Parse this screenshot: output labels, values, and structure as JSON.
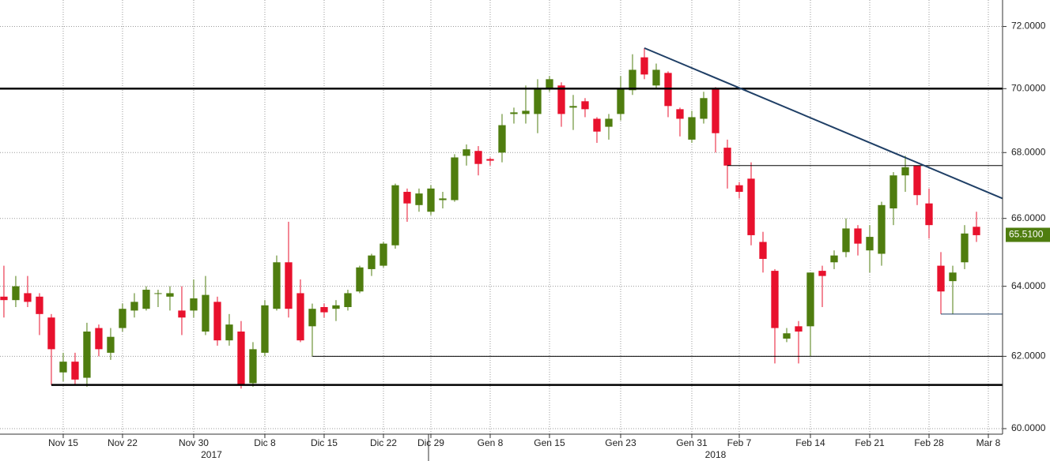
{
  "chart_data": {
    "type": "candlestick",
    "y_log": true,
    "grid": true,
    "up_color": "#4f7d0f",
    "down_color": "#e8112d",
    "xlim": [
      -0.33,
      84.2
    ],
    "ylim": [
      59.85,
      72.87
    ],
    "yticks": [
      {
        "value": 60,
        "label": "60.0000"
      },
      {
        "value": 62,
        "label": "62.0000"
      },
      {
        "value": 64,
        "label": "64.0000"
      },
      {
        "value": 66,
        "label": "66.0000"
      },
      {
        "value": 68,
        "label": "68.0000"
      },
      {
        "value": 70,
        "label": "70.0000"
      },
      {
        "value": 72,
        "label": "72.0000"
      }
    ],
    "xticks": [
      {
        "value": 5,
        "label": "Nov 15"
      },
      {
        "value": 10,
        "label": "Nov 22"
      },
      {
        "value": 16,
        "label": "Nov 30"
      },
      {
        "value": 22,
        "label": "Dic 8"
      },
      {
        "value": 27,
        "label": "Dic 15"
      },
      {
        "value": 32,
        "label": "Dic 22"
      },
      {
        "value": 36,
        "label": "Dic 29"
      },
      {
        "value": 41,
        "label": "Gen 8"
      },
      {
        "value": 46,
        "label": "Gen 15"
      },
      {
        "value": 52,
        "label": "Gen 23"
      },
      {
        "value": 58,
        "label": "Gen 31"
      },
      {
        "value": 62,
        "label": "Feb 7"
      },
      {
        "value": 68,
        "label": "Feb 14"
      },
      {
        "value": 73,
        "label": "Feb 21"
      },
      {
        "value": 78,
        "label": "Feb 28"
      },
      {
        "value": 83,
        "label": "Mar 8"
      }
    ],
    "year_ticks": [
      {
        "value": 17.5,
        "label": "2017"
      },
      {
        "value": 60,
        "label": "2018"
      }
    ],
    "year_separator": 35.8,
    "last_price": {
      "value": 65.51,
      "label": "65.5100"
    },
    "lines": [
      {
        "x0": -0.33,
        "y0": 70,
        "x1": 84.2,
        "y1": 70,
        "style": "thick",
        "color": "#000000"
      },
      {
        "x0": 4,
        "y0": 61.2,
        "x1": 84.2,
        "y1": 61.2,
        "style": "thick",
        "color": "#000000"
      },
      {
        "x0": 26,
        "y0": 62,
        "x1": 84.2,
        "y1": 62,
        "style": "thin",
        "color": "#000000"
      },
      {
        "x0": 61,
        "y0": 67.6,
        "x1": 84.2,
        "y1": 67.6,
        "style": "thin",
        "color": "#000000"
      },
      {
        "x0": 79,
        "y0": 63.2,
        "x1": 84.2,
        "y1": 63.2,
        "style": "thin",
        "color": "#1f3f66"
      },
      {
        "x0": 54,
        "y0": 71.3,
        "x1": 84.2,
        "y1": 66.6,
        "style": "trend",
        "color": "#1f3f66"
      }
    ],
    "x": [
      0,
      1,
      2,
      3,
      4,
      5,
      6,
      7,
      8,
      9,
      10,
      11,
      12,
      13,
      14,
      15,
      16,
      17,
      18,
      19,
      20,
      21,
      22,
      23,
      24,
      25,
      26,
      27,
      28,
      29,
      30,
      31,
      32,
      33,
      34,
      35,
      36,
      37,
      38,
      39,
      40,
      41,
      42,
      43,
      44,
      45,
      46,
      47,
      48,
      49,
      50,
      51,
      52,
      53,
      54,
      55,
      56,
      57,
      58,
      59,
      60,
      61,
      62,
      63,
      64,
      65,
      66,
      67,
      68,
      69,
      70,
      71,
      72,
      73,
      74,
      75,
      76,
      77,
      78,
      79,
      80,
      81,
      82
    ],
    "open": [
      63.7,
      63.6,
      63.8,
      63.7,
      63.1,
      61.55,
      61.85,
      61.4,
      62.8,
      62.1,
      62.8,
      63.3,
      63.35,
      63.78,
      63.7,
      63.3,
      63.3,
      62.7,
      63.55,
      62.45,
      62.7,
      61.25,
      62.1,
      63.35,
      64.7,
      63.8,
      62.85,
      63.4,
      63.35,
      63.4,
      63.85,
      64.5,
      64.6,
      65.2,
      66.8,
      66.4,
      66.2,
      66.55,
      66.55,
      67.9,
      68.05,
      67.8,
      68.0,
      69.2,
      69.2,
      69.2,
      70.0,
      70.1,
      69.4,
      69.6,
      69.05,
      68.8,
      69.2,
      69.95,
      71.0,
      70.1,
      70.5,
      69.35,
      68.4,
      69.05,
      70.0,
      68.15,
      67.0,
      67.2,
      65.3,
      64.45,
      62.5,
      62.85,
      62.85,
      64.45,
      64.7,
      65.0,
      65.7,
      65.05,
      64.95,
      66.3,
      67.3,
      67.6,
      66.45,
      64.6,
      64.15,
      64.7,
      65.75
    ],
    "high": [
      64.6,
      64.3,
      64.3,
      63.8,
      63.2,
      62.1,
      62.1,
      62.95,
      62.9,
      62.8,
      63.5,
      63.8,
      64.0,
      63.9,
      64.0,
      64.0,
      64.2,
      64.3,
      63.7,
      63.2,
      63.0,
      62.4,
      63.6,
      64.9,
      65.9,
      64.2,
      63.5,
      63.5,
      63.6,
      63.9,
      64.6,
      64.95,
      65.3,
      67.05,
      66.9,
      66.9,
      67.0,
      66.8,
      67.95,
      68.25,
      68.2,
      67.85,
      69.2,
      69.4,
      70.1,
      70.3,
      70.4,
      70.2,
      69.8,
      69.7,
      69.1,
      69.2,
      70.4,
      71.1,
      71.3,
      70.8,
      70.55,
      69.4,
      69.3,
      69.9,
      70.05,
      68.4,
      67.1,
      67.7,
      65.6,
      64.5,
      62.8,
      63.0,
      64.4,
      64.6,
      65.05,
      66.0,
      65.8,
      65.8,
      66.5,
      67.4,
      67.9,
      67.6,
      66.9,
      65.0,
      64.6,
      65.8,
      66.2
    ],
    "low": [
      63.1,
      63.4,
      63.4,
      62.6,
      61.2,
      61.3,
      61.2,
      61.15,
      62.0,
      61.9,
      62.7,
      63.1,
      63.3,
      63.4,
      63.3,
      62.6,
      63.1,
      62.6,
      62.3,
      62.3,
      61.1,
      61.15,
      62.0,
      63.3,
      63.1,
      62.4,
      62.0,
      63.1,
      63.0,
      63.3,
      63.8,
      64.3,
      64.55,
      65.1,
      65.9,
      66.2,
      66.1,
      66.3,
      66.5,
      67.6,
      67.3,
      67.6,
      67.7,
      68.9,
      68.9,
      68.6,
      69.9,
      68.8,
      68.7,
      69.1,
      68.3,
      68.4,
      69.0,
      69.8,
      70.3,
      70.0,
      69.1,
      68.5,
      68.3,
      68.9,
      68.0,
      66.9,
      66.6,
      65.2,
      64.4,
      61.8,
      62.4,
      61.8,
      62.0,
      63.4,
      64.5,
      64.85,
      64.9,
      64.4,
      64.6,
      65.8,
      66.8,
      66.4,
      65.4,
      63.2,
      63.2,
      64.5,
      65.3
    ],
    "close": [
      63.6,
      64.0,
      63.55,
      63.2,
      62.2,
      61.85,
      61.35,
      62.7,
      62.2,
      62.55,
      63.35,
      63.55,
      63.9,
      63.8,
      63.8,
      63.1,
      63.65,
      63.75,
      62.45,
      62.9,
      61.2,
      62.2,
      63.45,
      64.7,
      63.35,
      62.45,
      63.35,
      63.25,
      63.45,
      63.8,
      64.55,
      64.9,
      65.25,
      67.0,
      66.45,
      66.75,
      66.9,
      66.6,
      67.85,
      68.1,
      67.65,
      67.75,
      68.85,
      69.25,
      69.3,
      70.0,
      70.3,
      69.2,
      69.45,
      69.35,
      68.65,
      69.05,
      70.0,
      70.6,
      70.45,
      70.6,
      69.45,
      69.05,
      69.1,
      69.7,
      68.6,
      67.6,
      66.8,
      65.5,
      64.8,
      62.8,
      62.65,
      62.7,
      64.4,
      64.3,
      64.9,
      65.7,
      65.25,
      65.45,
      66.4,
      67.3,
      67.55,
      66.7,
      65.8,
      63.85,
      64.4,
      65.55,
      65.5
    ]
  }
}
